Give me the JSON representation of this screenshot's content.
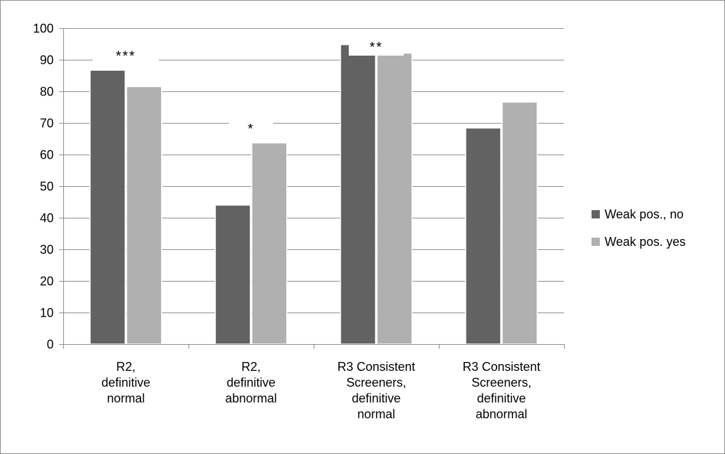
{
  "chart_data": {
    "type": "bar",
    "categories": [
      "R2, definitive normal",
      "R2, definitive abnormal",
      "R3 Consistent Screeners, definitive normal",
      "R3 Consistent Screeners, definitive abnormal"
    ],
    "category_label_lines": [
      [
        "R2,",
        "definitive",
        "normal"
      ],
      [
        "R2,",
        "definitive",
        "abnormal"
      ],
      [
        "R3 Consistent",
        "Screeners,",
        "definitive",
        "normal"
      ],
      [
        "R3 Consistent",
        "Screeners,",
        "definitive",
        "abnormal"
      ]
    ],
    "series": [
      {
        "name": "Weak pos., no",
        "color": "#626262",
        "values": [
          86.7,
          44,
          94.8,
          68.4
        ]
      },
      {
        "name": "Weak pos. yes",
        "color": "#b0b0b0",
        "values": [
          81.5,
          63.7,
          92.1,
          76.6
        ]
      }
    ],
    "annotations": [
      "***",
      "*",
      "**",
      ""
    ],
    "yticks": [
      "0",
      "10",
      "20",
      "30",
      "40",
      "50",
      "60",
      "70",
      "80",
      "90",
      "100"
    ],
    "ylim": [
      0,
      100
    ],
    "grid": true,
    "legend_position": "right",
    "title": "",
    "xlabel": "",
    "ylabel": ""
  }
}
